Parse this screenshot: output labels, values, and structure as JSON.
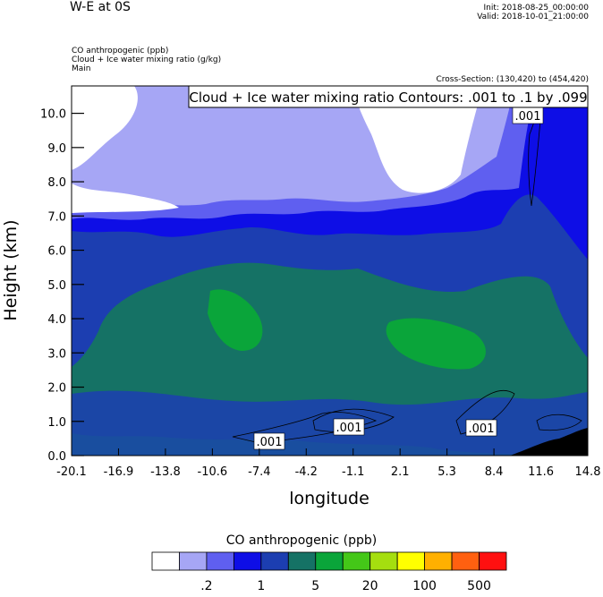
{
  "header": {
    "title": "W-E at 0S",
    "init": "Init: 2018-08-25_00:00:00",
    "valid": "Valid: 2018-10-01_21:00:00",
    "field1": "CO anthropogenic   (ppb)",
    "field2": "Cloud + Ice water mixing ratio   (g/kg)",
    "field3": "Main",
    "cross_section": "Cross-Section: (130,420) to (454,420)"
  },
  "contour_label": "Cloud + Ice water mixing ratio Contours: .001 to .1 by .099",
  "contour_line_labels": [
    ".001",
    ".001",
    ".001",
    ".001"
  ],
  "colors": {
    "levels": [
      "#ffffff",
      "#a6a6f5",
      "#5f5ff0",
      "#0e0ee6",
      "#1c3eb1",
      "#157265",
      "#0aa53a",
      "#44c718",
      "#a5de0f",
      "#ffff00",
      "#ffb000",
      "#ff6010",
      "#ff1010"
    ]
  },
  "chart_data": {
    "type": "heatmap",
    "title": "W-E at 0S",
    "xlabel": "longitude",
    "ylabel": "Height (km)",
    "x_ticks": [
      "-20.1",
      "-16.9",
      "-13.8",
      "-10.6",
      "-7.4",
      "-4.2",
      "-1.1",
      "2.1",
      "5.3",
      "8.4",
      "11.6",
      "14.8"
    ],
    "y_ticks": [
      "0.0",
      "1.0",
      "2.0",
      "3.0",
      "4.0",
      "5.0",
      "6.0",
      "7.0",
      "8.0",
      "9.0",
      "10.0"
    ],
    "xlim": [
      -20.1,
      14.8
    ],
    "ylim": [
      0.0,
      10.8
    ],
    "filled_field": "CO anthropogenic (ppb)",
    "contour_field": "Cloud + Ice water mixing ratio (g/kg)",
    "contour_levels": [
      0.001,
      0.1
    ],
    "colorbar": {
      "title": "CO anthropogenic  (ppb)",
      "labels": [
        ".2",
        "1",
        "5",
        "20",
        "100",
        "500"
      ],
      "colors": [
        "#ffffff",
        "#a6a6f5",
        "#5f5ff0",
        "#0e0ee6",
        "#1c3eb1",
        "#157265",
        "#0aa53a",
        "#44c718",
        "#a5de0f",
        "#ffff00",
        "#ffb000",
        "#ff6010",
        "#ff1010"
      ]
    }
  }
}
